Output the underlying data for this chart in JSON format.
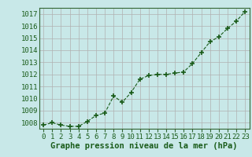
{
  "x": [
    0,
    1,
    2,
    3,
    4,
    5,
    6,
    7,
    8,
    9,
    10,
    11,
    12,
    13,
    14,
    15,
    16,
    17,
    18,
    19,
    20,
    21,
    22,
    23
  ],
  "y": [
    1007.8,
    1008.0,
    1007.8,
    1007.7,
    1007.7,
    1008.1,
    1008.6,
    1008.8,
    1010.2,
    1009.7,
    1010.5,
    1011.6,
    1011.9,
    1012.0,
    1012.0,
    1012.1,
    1012.2,
    1012.9,
    1013.8,
    1014.7,
    1015.1,
    1015.8,
    1016.4,
    1017.2
  ],
  "ylim": [
    1007.5,
    1017.5
  ],
  "yticks": [
    1008,
    1009,
    1010,
    1011,
    1012,
    1013,
    1014,
    1015,
    1016,
    1017
  ],
  "xticks": [
    0,
    1,
    2,
    3,
    4,
    5,
    6,
    7,
    8,
    9,
    10,
    11,
    12,
    13,
    14,
    15,
    16,
    17,
    18,
    19,
    20,
    21,
    22,
    23
  ],
  "xlabel": "Graphe pression niveau de la mer (hPa)",
  "line_color": "#1a5c1a",
  "marker": "+",
  "marker_color": "#1a5c1a",
  "bg_color": "#c8e8e8",
  "grid_color": "#b0b0b0",
  "tick_label_color": "#1a5c1a",
  "xlabel_color": "#1a5c1a",
  "xlabel_fontsize": 7.5,
  "tick_fontsize": 6.5,
  "spine_color": "#336633"
}
